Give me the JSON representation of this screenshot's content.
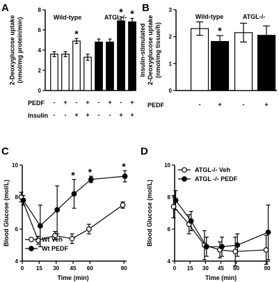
{
  "chart_data": [
    {
      "panel": "A",
      "type": "bar",
      "ylabel": "2-Deoxyglucose uptake\n(nmol/mg protein/min)",
      "ylim": [
        0,
        8
      ],
      "yticks": [
        0,
        2,
        4,
        6,
        8
      ],
      "groups": [
        "Wild-type",
        "ATGL-/-"
      ],
      "row_labels": [
        "PEDF",
        "Insulin"
      ],
      "condition_signs": {
        "PEDF": [
          "-",
          "+",
          "-",
          "+",
          "-",
          "+",
          "-",
          "+"
        ],
        "Insulin": [
          "-",
          "-",
          "+",
          "+",
          "-",
          "-",
          "+",
          "+"
        ]
      },
      "series": [
        {
          "values": [
            3.6,
            3.6,
            4.9,
            3.3
          ],
          "errors": [
            0.25,
            0.25,
            0.25,
            0.3
          ],
          "fill": "#ffffff"
        },
        {
          "values": [
            4.8,
            4.8,
            6.9,
            6.8
          ],
          "errors": [
            0.3,
            0.3,
            0.4,
            0.35
          ],
          "fill": "#000000"
        }
      ],
      "significance": [
        "",
        "",
        "*",
        "",
        "",
        "",
        "*",
        "*"
      ]
    },
    {
      "panel": "B",
      "type": "bar",
      "ylabel": "Insulin-stimulated\n2-Deoxyglucose uptake\n(nmol/mg tissue/h)",
      "ylim": [
        0,
        3
      ],
      "yticks": [
        0,
        1,
        2,
        3
      ],
      "groups": [
        "Wild-type",
        "ATGL-/-"
      ],
      "row_labels": [
        "PEDF"
      ],
      "condition_signs": {
        "PEDF": [
          "-",
          "+",
          "-",
          "+"
        ]
      },
      "series": [
        {
          "values": [
            2.3,
            2.15
          ],
          "errors": [
            0.25,
            0.35
          ],
          "fill": "#ffffff"
        },
        {
          "values": [
            1.82,
            2.05
          ],
          "errors": [
            0.22,
            0.35
          ],
          "fill": "#000000"
        }
      ],
      "bar_order": [
        "white",
        "black",
        "white",
        "black"
      ],
      "significance": [
        "",
        "*",
        "",
        ""
      ]
    },
    {
      "panel": "C",
      "type": "line",
      "xlabel": "Time (min)",
      "ylabel": "Blood Glucose (mol/L)",
      "xticks": [
        0,
        15,
        30,
        45,
        60,
        90
      ],
      "yticks": [
        4,
        6,
        8,
        10
      ],
      "xlim": [
        0,
        90
      ],
      "ylim": [
        4,
        10
      ],
      "x": [
        0,
        15,
        30,
        45,
        60,
        90
      ],
      "series": [
        {
          "name": "Wt Veh",
          "marker": "open",
          "values": [
            8.0,
            5.3,
            5.6,
            5.4,
            6.0,
            7.5
          ],
          "errors": [
            0.3,
            0.25,
            0.25,
            0.3,
            0.3,
            0.2
          ]
        },
        {
          "name": "Wt PEDF",
          "marker": "filled",
          "x": [
            0,
            15,
            30,
            45,
            60,
            90
          ],
          "values": [
            7.8,
            6.2,
            7.2,
            8.2,
            9.1,
            9.3
          ],
          "errors": [
            0.3,
            1.3,
            1.5,
            0.9,
            0.2,
            0.35
          ]
        }
      ],
      "significance": [
        "",
        "",
        "",
        "*",
        "*",
        "*"
      ],
      "legend_position": "bottom-left"
    },
    {
      "panel": "D",
      "type": "line",
      "xlabel": "Time (min)",
      "ylabel": "Blood Glucose (mol/L)",
      "xticks": [
        0,
        15,
        30,
        45,
        60,
        90
      ],
      "yticks": [
        4,
        6,
        8,
        10
      ],
      "xlim": [
        0,
        90
      ],
      "ylim": [
        4,
        10
      ],
      "x": [
        0,
        15,
        30,
        45,
        60,
        90
      ],
      "series": [
        {
          "name": "ATGL-/- Veh",
          "marker": "open",
          "values": [
            7.4,
            6.3,
            5.0,
            4.7,
            4.6,
            4.7
          ],
          "errors": [
            0.7,
            0.6,
            0.9,
            0.5,
            0.9,
            0.9
          ]
        },
        {
          "name": "ATGL -/- PEDF",
          "marker": "filled",
          "values": [
            7.8,
            6.5,
            4.9,
            4.9,
            5.0,
            5.8
          ],
          "errors": [
            0.6,
            0.6,
            0.6,
            0.6,
            0.7,
            1.7
          ]
        }
      ],
      "legend_position": "top-left"
    }
  ]
}
